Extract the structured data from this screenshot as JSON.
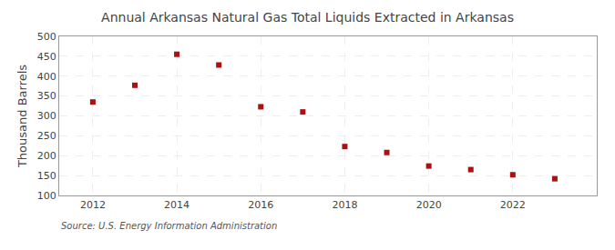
{
  "chart_data": {
    "type": "scatter",
    "title": "Annual Arkansas Natural Gas Total Liquids Extracted in Arkansas",
    "y_label": "Thousand Barrels",
    "annotations": [
      "Source: U.S. Energy Information Administration"
    ],
    "x": [
      2012,
      2013,
      2014,
      2015,
      2016,
      2017,
      2018,
      2019,
      2020,
      2021,
      2022,
      2023
    ],
    "values": [
      335,
      377,
      455,
      428,
      323,
      310,
      223,
      208,
      174,
      165,
      152,
      142
    ],
    "color": "#aa1111",
    "marker": "square",
    "xlim": [
      2011.2,
      2024.0
    ],
    "xticks": [
      2012,
      2014,
      2016,
      2018,
      2020,
      2022
    ],
    "ylim": [
      100,
      500
    ],
    "yticks": [
      100,
      150,
      200,
      250,
      300,
      350,
      400,
      450,
      500
    ],
    "grid": true
  }
}
